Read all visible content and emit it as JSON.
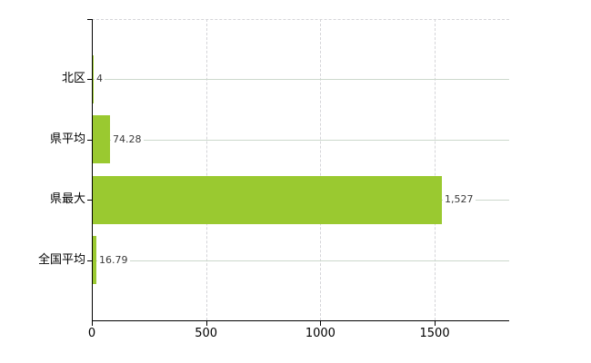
{
  "chart_data": {
    "type": "bar",
    "orientation": "horizontal",
    "title": "",
    "categories": [
      "北区",
      "県平均",
      "県最大",
      "全国平均"
    ],
    "values": [
      4,
      74.28,
      1527,
      16.79
    ],
    "value_labels": [
      "4",
      "74.28",
      "1,527",
      "16.79"
    ],
    "x_ticks": [
      0,
      500,
      1000,
      1500
    ],
    "x_tick_labels": [
      "0",
      "500",
      "1000",
      "1500"
    ],
    "xlim": [
      0,
      1826
    ],
    "grid": true,
    "bar_color": "#9ac930",
    "h_gridline_color": "#ccd8cc",
    "v_gridline_color": "#d4d4d8",
    "axis_color": "#000000",
    "background_color": "#ffffff"
  }
}
